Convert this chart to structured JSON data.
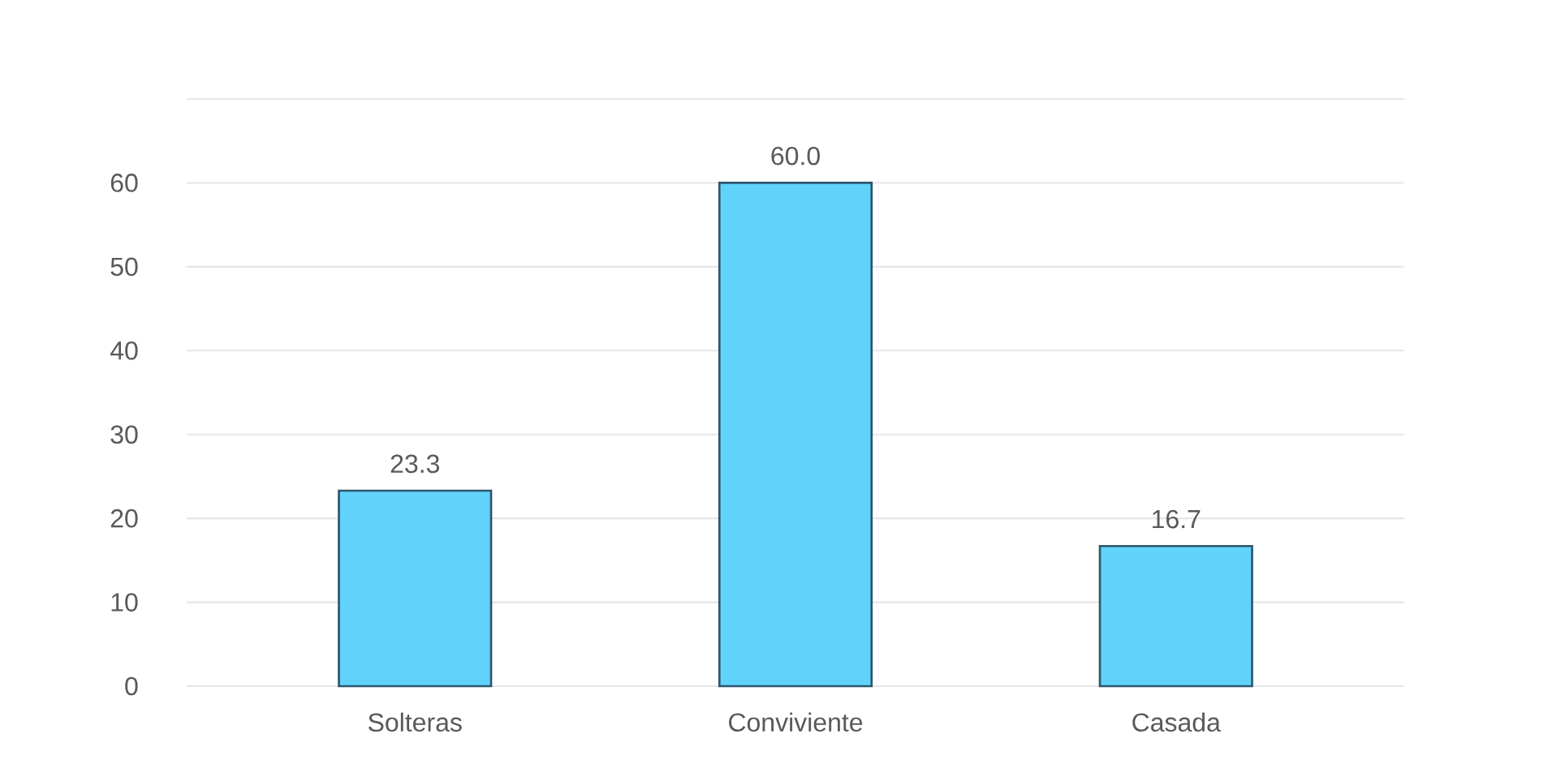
{
  "chart_data": {
    "type": "bar",
    "categories": [
      "Solteras",
      "Conviviente",
      "Casada"
    ],
    "values": [
      23.3,
      60.0,
      16.7
    ],
    "color": "#61d3fa",
    "value_labels": [
      "23.3",
      "60.0",
      "16.7"
    ],
    "ylim": [
      0,
      70
    ],
    "yticks": [
      0,
      10,
      20,
      30,
      40,
      50,
      60,
      {
        "value": 70,
        "label": null
      }
    ],
    "grid": "y"
  }
}
